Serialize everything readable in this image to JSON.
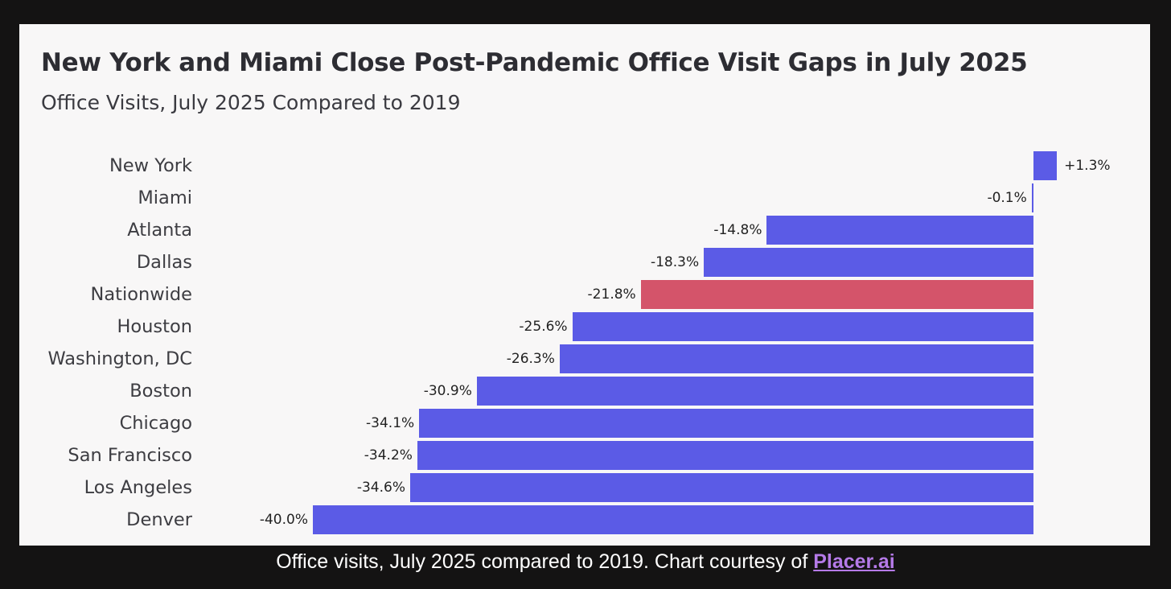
{
  "chart_data": {
    "type": "bar",
    "orientation": "horizontal",
    "title": "New York and Miami Close Post-Pandemic Office Visit Gaps in July 2025",
    "subtitle": "Office Visits, July 2025 Compared to 2019",
    "categories": [
      "New York",
      "Miami",
      "Atlanta",
      "Dallas",
      "Nationwide",
      "Houston",
      "Washington, DC",
      "Boston",
      "Chicago",
      "San Francisco",
      "Los Angeles",
      "Denver"
    ],
    "values": [
      1.3,
      -0.1,
      -14.8,
      -18.3,
      -21.8,
      -25.6,
      -26.3,
      -30.9,
      -34.1,
      -34.2,
      -34.6,
      -40.0
    ],
    "labels": [
      "+1.3%",
      "-0.1%",
      "-14.8%",
      "-18.3%",
      "-21.8%",
      "-25.6%",
      "-26.3%",
      "-30.9%",
      "-34.1%",
      "-34.2%",
      "-34.6%",
      "-40.0%"
    ],
    "highlight": "Nationwide",
    "colors": {
      "default": "#5b5be6",
      "highlight": "#d4546a"
    },
    "xlim": [
      -40,
      1.5
    ],
    "unit": "%",
    "grid": false
  },
  "caption": {
    "text": "Office visits, July 2025 compared to 2019. Chart courtesy of ",
    "link": "Placer.ai",
    "link_color": "#b57ae8"
  }
}
